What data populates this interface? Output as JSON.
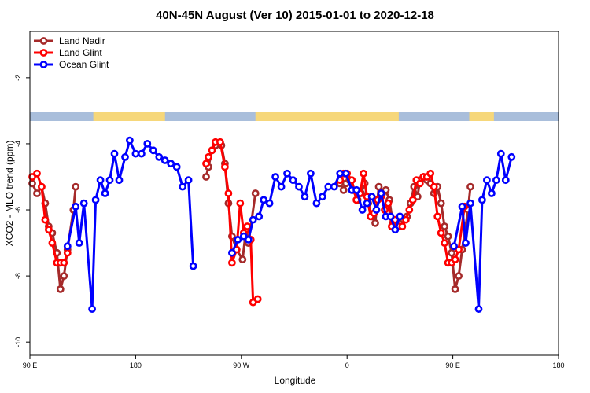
{
  "chart_data": {
    "type": "line",
    "title": "40N-45N August (Ver 10)   2015-01-01 to 2020-12-18",
    "xlabel": "Longitude",
    "ylabel": "XCO2 - MLO trend (ppm)",
    "x_ticks": [
      {
        "x": 90,
        "label": "90 E"
      },
      {
        "x": 180,
        "label": "180"
      },
      {
        "x": 270,
        "label": "90 W"
      },
      {
        "x": 360,
        "label": "0"
      },
      {
        "x": 450,
        "label": "90 E"
      },
      {
        "x": 540,
        "label": "180"
      }
    ],
    "y_ticks": [
      -2,
      -4,
      -6,
      -8,
      -10
    ],
    "xlim": [
      90,
      540
    ],
    "ylim": [
      -10.4,
      -0.6
    ],
    "grid": false,
    "legend_position": "top-left",
    "land_mask_colors": {
      "land": "#f6d77a",
      "ocean": "#a9bedb"
    },
    "land_mask_ocean_ranges": [
      [
        90,
        144
      ],
      [
        205,
        282
      ],
      [
        404,
        464
      ],
      [
        485,
        540
      ]
    ],
    "series": [
      {
        "name": "Land Nadir",
        "color": "#a52a2a",
        "segments": [
          [
            [
              92,
              -5.2
            ],
            [
              96,
              -5.5
            ],
            [
              100,
              -5.3
            ],
            [
              103,
              -5.8
            ],
            [
              106,
              -6.5
            ],
            [
              109,
              -6.7
            ],
            [
              113,
              -7.3
            ],
            [
              116,
              -8.4
            ],
            [
              119,
              -8.0
            ],
            [
              122,
              -7.2
            ],
            [
              127,
              -6.0
            ],
            [
              129,
              -5.3
            ]
          ],
          [
            [
              240,
              -5.0
            ],
            [
              242,
              -4.7
            ],
            [
              245,
              -4.2
            ],
            [
              248,
              -4.05
            ],
            [
              253,
              -4.05
            ],
            [
              256,
              -4.6
            ],
            [
              259,
              -5.8
            ],
            [
              262,
              -6.8
            ],
            [
              266,
              -7.2
            ],
            [
              271,
              -7.5
            ],
            [
              274,
              -6.6
            ],
            [
              276,
              -7.0
            ],
            [
              282,
              -5.5
            ]
          ],
          [
            [
              354,
              -5.2
            ],
            [
              357,
              -5.4
            ],
            [
              359,
              -5.2
            ],
            [
              362,
              -5.1
            ],
            [
              365,
              -5.4
            ],
            [
              369,
              -5.7
            ],
            [
              372,
              -5.5
            ],
            [
              375,
              -5.2
            ],
            [
              378,
              -5.8
            ],
            [
              381,
              -6.2
            ],
            [
              384,
              -6.4
            ],
            [
              387,
              -5.3
            ],
            [
              390,
              -5.5
            ],
            [
              393,
              -5.4
            ],
            [
              396,
              -5.7
            ],
            [
              399,
              -6.4
            ],
            [
              402,
              -6.5
            ],
            [
              405,
              -6.4
            ],
            [
              408,
              -6.3
            ],
            [
              411,
              -6.2
            ],
            [
              414,
              -5.8
            ],
            [
              417,
              -5.3
            ],
            [
              420,
              -5.6
            ],
            [
              422,
              -5.1
            ],
            [
              425,
              -5.0
            ],
            [
              428,
              -5.1
            ],
            [
              431,
              -5.2
            ],
            [
              434,
              -5.5
            ],
            [
              437,
              -5.3
            ],
            [
              440,
              -5.8
            ],
            [
              443,
              -6.5
            ],
            [
              446,
              -6.8
            ],
            [
              449,
              -7.3
            ],
            [
              452,
              -8.4
            ],
            [
              455,
              -8.0
            ],
            [
              458,
              -7.2
            ],
            [
              463,
              -6.0
            ],
            [
              465,
              -5.3
            ]
          ]
        ]
      },
      {
        "name": "Land Glint",
        "color": "#ff0000",
        "segments": [
          [
            [
              92,
              -5.0
            ],
            [
              96,
              -4.9
            ],
            [
              100,
              -5.3
            ],
            [
              103,
              -6.3
            ],
            [
              106,
              -6.6
            ],
            [
              109,
              -7.0
            ],
            [
              113,
              -7.6
            ],
            [
              116,
              -7.6
            ],
            [
              119,
              -7.6
            ],
            [
              122,
              -7.3
            ]
          ],
          [
            [
              240,
              -4.6
            ],
            [
              242,
              -4.4
            ],
            [
              245,
              -4.2
            ],
            [
              248,
              -3.95
            ],
            [
              252,
              -3.95
            ],
            [
              256,
              -4.7
            ],
            [
              259,
              -5.5
            ],
            [
              262,
              -7.6
            ],
            [
              266,
              -7.2
            ],
            [
              269,
              -5.8
            ],
            [
              272,
              -6.7
            ],
            [
              275,
              -6.5
            ],
            [
              278,
              -6.9
            ],
            [
              280,
              -8.8
            ],
            [
              284,
              -8.7
            ]
          ],
          [
            [
              354,
              -5.1
            ],
            [
              357,
              -4.9
            ],
            [
              360,
              -4.9
            ],
            [
              364,
              -5.1
            ],
            [
              368,
              -5.7
            ],
            [
              371,
              -5.5
            ],
            [
              374,
              -4.9
            ],
            [
              377,
              -5.6
            ],
            [
              380,
              -6.2
            ],
            [
              383,
              -6.1
            ],
            [
              386,
              -5.7
            ],
            [
              389,
              -5.6
            ],
            [
              392,
              -6.0
            ],
            [
              395,
              -5.8
            ],
            [
              398,
              -6.5
            ],
            [
              401,
              -6.3
            ],
            [
              404,
              -6.5
            ],
            [
              407,
              -6.5
            ],
            [
              410,
              -6.3
            ],
            [
              413,
              -6.0
            ],
            [
              416,
              -5.7
            ],
            [
              419,
              -5.1
            ],
            [
              422,
              -5.2
            ],
            [
              425,
              -5.0
            ],
            [
              428,
              -5.0
            ],
            [
              431,
              -4.9
            ],
            [
              434,
              -5.3
            ],
            [
              437,
              -6.2
            ],
            [
              440,
              -6.7
            ],
            [
              443,
              -7.0
            ],
            [
              446,
              -7.6
            ],
            [
              449,
              -7.6
            ],
            [
              452,
              -7.5
            ],
            [
              455,
              -7.2
            ],
            [
              460,
              -5.9
            ]
          ]
        ]
      },
      {
        "name": "Ocean Glint",
        "color": "#0000ff",
        "segments": [
          [
            [
              122,
              -7.1
            ],
            [
              129,
              -5.9
            ],
            [
              132,
              -7.0
            ],
            [
              136,
              -5.8
            ],
            [
              143,
              -9.0
            ],
            [
              146,
              -5.7
            ],
            [
              150,
              -5.1
            ],
            [
              154,
              -5.5
            ],
            [
              158,
              -5.1
            ],
            [
              162,
              -4.3
            ],
            [
              166,
              -5.1
            ],
            [
              171,
              -4.4
            ],
            [
              175,
              -3.9
            ],
            [
              180,
              -4.3
            ],
            [
              185,
              -4.3
            ],
            [
              190,
              -4.0
            ],
            [
              195,
              -4.2
            ],
            [
              200,
              -4.4
            ],
            [
              205,
              -4.5
            ],
            [
              210,
              -4.6
            ],
            [
              215,
              -4.7
            ],
            [
              220,
              -5.3
            ],
            [
              225,
              -5.1
            ],
            [
              229,
              -7.7
            ]
          ],
          [
            [
              262,
              -7.3
            ],
            [
              267,
              -6.9
            ],
            [
              272,
              -6.8
            ],
            [
              276,
              -6.9
            ],
            [
              280,
              -6.3
            ],
            [
              285,
              -6.2
            ],
            [
              289,
              -5.7
            ],
            [
              294,
              -5.8
            ],
            [
              299,
              -5.0
            ],
            [
              304,
              -5.3
            ],
            [
              309,
              -4.9
            ],
            [
              314,
              -5.1
            ],
            [
              319,
              -5.3
            ],
            [
              324,
              -5.6
            ],
            [
              329,
              -4.9
            ],
            [
              334,
              -5.8
            ],
            [
              339,
              -5.6
            ],
            [
              344,
              -5.3
            ],
            [
              349,
              -5.3
            ],
            [
              354,
              -4.9
            ],
            [
              359,
              -4.9
            ],
            [
              364,
              -5.4
            ],
            [
              368,
              -5.4
            ],
            [
              373,
              -6.0
            ],
            [
              377,
              -5.8
            ],
            [
              381,
              -5.6
            ],
            [
              385,
              -6.0
            ],
            [
              389,
              -5.5
            ],
            [
              393,
              -6.2
            ],
            [
              397,
              -6.2
            ],
            [
              401,
              -6.6
            ],
            [
              405,
              -6.2
            ]
          ],
          [
            [
              451,
              -7.1
            ],
            [
              458,
              -5.9
            ],
            [
              461,
              -7.0
            ],
            [
              465,
              -5.8
            ],
            [
              472,
              -9.0
            ],
            [
              475,
              -5.7
            ],
            [
              479,
              -5.1
            ],
            [
              483,
              -5.5
            ],
            [
              487,
              -5.1
            ],
            [
              491,
              -4.3
            ],
            [
              495,
              -5.1
            ],
            [
              500,
              -4.4
            ]
          ]
        ]
      }
    ]
  }
}
